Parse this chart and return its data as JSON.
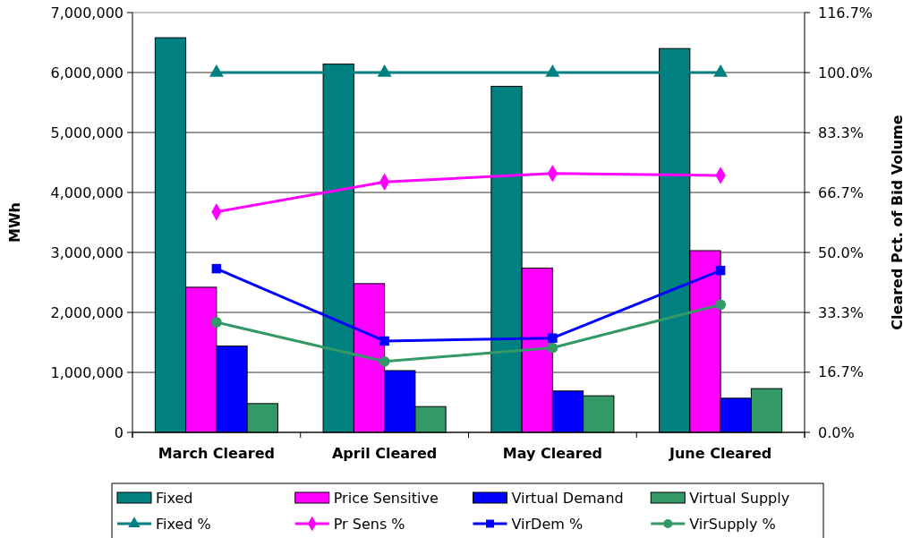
{
  "chart_data": {
    "type": "bar",
    "categories": [
      "March Cleared",
      "April Cleared",
      "May Cleared",
      "June Cleared"
    ],
    "ylabel": "MWh",
    "y2label": "Cleared Pct. of Bid Volume",
    "ylim": [
      0,
      7000000
    ],
    "yticks": [
      {
        "value": 0,
        "label": "0"
      },
      {
        "value": 1000000,
        "label": "1,000,000"
      },
      {
        "value": 2000000,
        "label": "2,000,000"
      },
      {
        "value": 3000000,
        "label": "3,000,000"
      },
      {
        "value": 4000000,
        "label": "4,000,000"
      },
      {
        "value": 5000000,
        "label": "5,000,000"
      },
      {
        "value": 6000000,
        "label": "6,000,000"
      },
      {
        "value": 7000000,
        "label": "7,000,000"
      }
    ],
    "y2lim": [
      0,
      116.7
    ],
    "y2ticks": [
      {
        "value": 0,
        "label": "0.0%"
      },
      {
        "value": 16.7,
        "label": "16.7%"
      },
      {
        "value": 33.3,
        "label": "33.3%"
      },
      {
        "value": 50,
        "label": "50.0%"
      },
      {
        "value": 66.7,
        "label": "66.7%"
      },
      {
        "value": 83.3,
        "label": "83.3%"
      },
      {
        "value": 100,
        "label": "100.0%"
      },
      {
        "value": 116.7,
        "label": "116.7%"
      }
    ],
    "grid": "y",
    "legend": "bottom",
    "series": [
      {
        "name": "Fixed",
        "color": "#008080",
        "values": [
          6580000,
          6140000,
          5770000,
          6400000
        ]
      },
      {
        "name": "Price Sensitive",
        "color": "#ff00ff",
        "values": [
          2420000,
          2480000,
          2740000,
          3030000
        ]
      },
      {
        "name": "Virtual Demand",
        "color": "#0000ff",
        "values": [
          1440000,
          1030000,
          690000,
          570000
        ]
      },
      {
        "name": "Virtual Supply",
        "color": "#339966",
        "values": [
          480000,
          430000,
          610000,
          730000
        ]
      },
      {
        "name": "Fixed %",
        "type": "line",
        "axis": "y2",
        "marker": "triangle",
        "color": "#008080",
        "values": [
          100,
          100,
          100,
          100
        ]
      },
      {
        "name": "Pr Sens %",
        "type": "line",
        "axis": "y2",
        "marker": "diamond",
        "color": "#ff00ff",
        "values": [
          61.3,
          69.6,
          72.0,
          71.4
        ]
      },
      {
        "name": "VirDem %",
        "type": "line",
        "axis": "y2",
        "marker": "square",
        "color": "#0000ff",
        "values": [
          45.5,
          25.4,
          26.2,
          45.0
        ]
      },
      {
        "name": "VirSupply %",
        "type": "line",
        "axis": "y2",
        "marker": "circle",
        "color": "#339966",
        "values": [
          30.6,
          19.7,
          23.5,
          35.5
        ]
      }
    ]
  }
}
